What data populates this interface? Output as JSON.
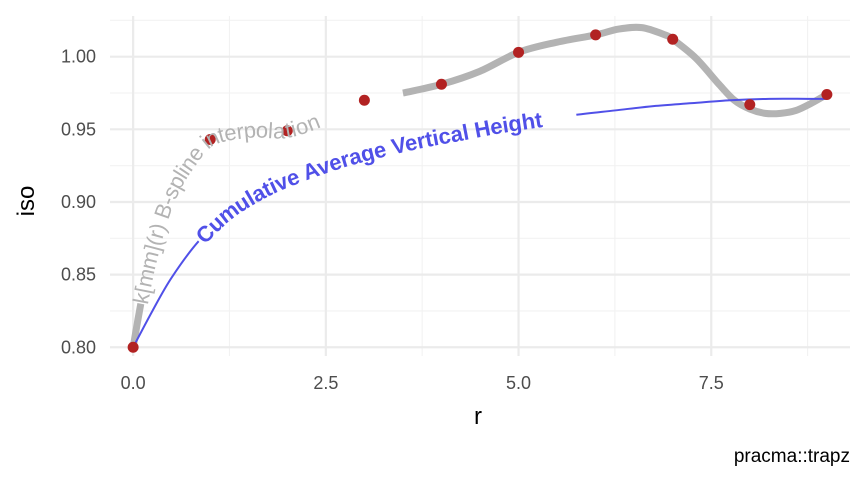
{
  "chart_data": {
    "type": "line",
    "title": "",
    "xlabel": "r",
    "ylabel": "iso",
    "caption": "pracma::trapz",
    "xlim": [
      -0.3,
      9.3
    ],
    "ylim": [
      0.794,
      1.028
    ],
    "x_ticks": [
      0,
      2.5,
      5,
      7.5
    ],
    "x_tick_labels": [
      "0.0",
      "2.5",
      "5.0",
      "7.5"
    ],
    "y_ticks": [
      0.8,
      0.85,
      0.9,
      0.95,
      1.0
    ],
    "y_tick_labels": [
      "0.80",
      "0.85",
      "0.90",
      "0.95",
      "1.00"
    ],
    "grid": true,
    "points": {
      "x": [
        0,
        1,
        2,
        3,
        4,
        5,
        6,
        7,
        8,
        9
      ],
      "y": [
        0.8,
        0.943,
        0.949,
        0.97,
        0.981,
        1.003,
        1.015,
        1.012,
        0.967,
        0.974
      ],
      "color": "#b22222"
    },
    "series": [
      {
        "name": "k[mm](r) B-spline interpolation",
        "color": "#b3b3b3",
        "x": [
          0,
          0.1,
          0.2,
          0.35,
          0.5,
          0.7,
          1,
          1.5,
          2,
          2.5,
          3,
          3.5,
          4,
          4.5,
          5,
          5.5,
          6,
          6.3,
          6.6,
          6.9,
          7,
          7.3,
          7.6,
          7.8,
          8,
          8.2,
          8.4,
          8.6,
          8.8,
          9
        ],
        "y": [
          0.8,
          0.83,
          0.856,
          0.886,
          0.907,
          0.925,
          0.943,
          0.949,
          0.949,
          0.958,
          0.97,
          0.975,
          0.981,
          0.99,
          1.003,
          1.01,
          1.015,
          1.019,
          1.02,
          1.015,
          1.012,
          0.999,
          0.981,
          0.97,
          0.964,
          0.961,
          0.961,
          0.963,
          0.968,
          0.974
        ]
      },
      {
        "name": "Cumulative Average Vertical Height",
        "color": "#5050e8",
        "x": [
          0,
          0.25,
          0.5,
          0.85,
          1.25,
          1.75,
          2.25,
          2.75,
          3.25,
          3.75,
          4.25,
          4.75,
          5.25,
          5.75,
          6.25,
          6.75,
          7.25,
          7.75,
          8.25,
          8.75,
          9
        ],
        "y": [
          0.8,
          0.825,
          0.848,
          0.873,
          0.893,
          0.909,
          0.92,
          0.929,
          0.936,
          0.942,
          0.947,
          0.952,
          0.956,
          0.96,
          0.963,
          0.966,
          0.968,
          0.97,
          0.971,
          0.971,
          0.971
        ]
      }
    ]
  }
}
